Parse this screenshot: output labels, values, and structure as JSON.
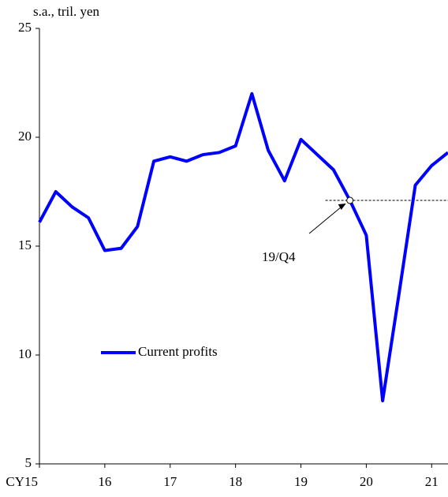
{
  "chart_data": {
    "type": "line",
    "y_axis_label": "s.a., tril.  yen",
    "categories": [
      "CY15",
      null,
      null,
      null,
      "16",
      null,
      null,
      null,
      "17",
      null,
      null,
      null,
      "18",
      null,
      null,
      null,
      "19",
      null,
      null,
      null,
      "20",
      null,
      null,
      null,
      "21",
      null
    ],
    "series": [
      {
        "name": "Current profits",
        "color": "#0000ff",
        "values": [
          16.1,
          17.5,
          16.8,
          16.3,
          14.8,
          14.9,
          15.9,
          18.9,
          19.1,
          18.9,
          19.2,
          19.3,
          19.6,
          22.0,
          19.4,
          18.0,
          19.9,
          19.2,
          18.5,
          17.1,
          15.5,
          7.9,
          12.8,
          17.8,
          18.7,
          19.3
        ]
      }
    ],
    "ylim": [
      5,
      25
    ],
    "yticks": [
      5,
      10,
      15,
      20,
      25
    ],
    "reference_value": 17.1,
    "annotation": "19/Q4",
    "legend": "center-left"
  }
}
